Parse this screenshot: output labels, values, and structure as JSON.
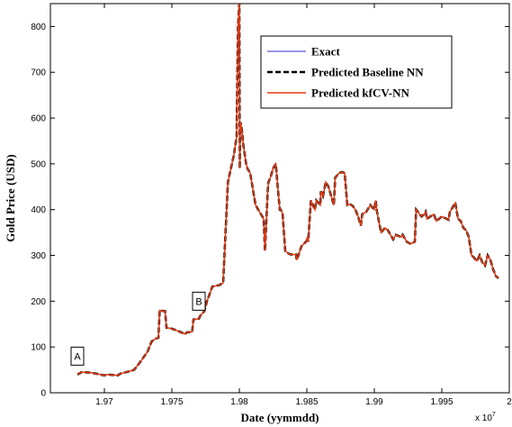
{
  "chart_data": {
    "type": "line",
    "xlabel": "Date (yymmdd)",
    "ylabel": "Gold Price (USD)",
    "x_scale_label": "x 10",
    "x_scale_exponent": "7",
    "xlim": [
      19660000,
      20000000
    ],
    "ylim": [
      0,
      850
    ],
    "xticks": [
      19700000,
      19750000,
      19800000,
      19850000,
      19900000,
      19950000,
      20000000
    ],
    "xtick_labels": [
      "1.97",
      "1.975",
      "1.98",
      "1.985",
      "1.99",
      "1.995",
      "2"
    ],
    "yticks": [
      0,
      100,
      200,
      300,
      400,
      500,
      600,
      700,
      800
    ],
    "ytick_labels": [
      "0",
      "100",
      "200",
      "300",
      "400",
      "500",
      "600",
      "700",
      "800"
    ],
    "legend_position": "top-right",
    "annotations": [
      {
        "text": "A",
        "x": 19680000,
        "y": 80
      },
      {
        "text": "B",
        "x": 19770000,
        "y": 200
      }
    ],
    "series": [
      {
        "name": "Exact",
        "color": "#3333cc",
        "style": "solid",
        "x": [
          19680000,
          19681500,
          19683000,
          19690000,
          19700000,
          19702000,
          19710000,
          19712000,
          19720000,
          19722000,
          19726000,
          19732000,
          19735000,
          19738000,
          19740000,
          19741000,
          19745000,
          19746000,
          19750000,
          19752000,
          19760000,
          19761000,
          19765000,
          19766000,
          19770000,
          19771000,
          19774000,
          19776000,
          19780000,
          19785000,
          19788000,
          19791500,
          19793000,
          19796000,
          19798000,
          19798200,
          19799000,
          19800000,
          19800300,
          19800600,
          19800800,
          19801000,
          19802000,
          19803000,
          19803500,
          19805000,
          19806000,
          19808000,
          19812000,
          19814000,
          19818000,
          19819000,
          19821000,
          19821500,
          19823000,
          19825000,
          19827000,
          19829000,
          19830000,
          19830600,
          19831000,
          19832000,
          19834000,
          19836000,
          19838000,
          19842000,
          19842500,
          19846000,
          19850000,
          19850300,
          19851000,
          19853000,
          19856000,
          19857000,
          19860000,
          19860400,
          19862000,
          19864000,
          19866000,
          19870000,
          19871000,
          19874000,
          19876000,
          19878000,
          19880000,
          19882000,
          19884000,
          19886000,
          19888000,
          19890000,
          19891000,
          19894000,
          19897000,
          19900000,
          19901000,
          19902000,
          19905000,
          19908000,
          19910000,
          19914000,
          19916000,
          19920000,
          19921000,
          19924000,
          19927000,
          19930000,
          19931000,
          19935000,
          19937000,
          19938000,
          19939000,
          19944000,
          19946000,
          19950000,
          19952000,
          19955000,
          19956000,
          19958000,
          19960000,
          19962000,
          19964000,
          19966000,
          19968000,
          19970000,
          19972000,
          19974000,
          19975000,
          19976000,
          19978000,
          19980000,
          19982000,
          19984000,
          19986000,
          19988000,
          19990000,
          19992000
        ],
        "y": [
          40,
          42,
          45,
          44,
          38,
          40,
          38,
          42,
          48,
          50,
          65,
          90,
          112,
          118,
          120,
          180,
          178,
          142,
          140,
          138,
          128,
          132,
          133,
          160,
          162,
          168,
          178,
          200,
          232,
          235,
          240,
          460,
          480,
          520,
          560,
          620,
          800,
          850,
          490,
          560,
          580,
          590,
          570,
          540,
          530,
          500,
          490,
          480,
          410,
          400,
          380,
          310,
          440,
          460,
          470,
          490,
          500,
          430,
          400,
          400,
          398,
          392,
          310,
          305,
          302,
          302,
          290,
          320,
          332,
          340,
          330,
          420,
          400,
          420,
          410,
          440,
          430,
          460,
          450,
          410,
          470,
          480,
          482,
          480,
          410,
          412,
          408,
          400,
          385,
          365,
          390,
          395,
          410,
          400,
          420,
          395,
          350,
          360,
          355,
          335,
          345,
          340,
          345,
          330,
          325,
          330,
          400,
          385,
          390,
          395,
          380,
          390,
          375,
          385,
          382,
          378,
          395,
          405,
          415,
          380,
          375,
          360,
          355,
          340,
          300,
          295,
          290,
          288,
          300,
          285,
          278,
          300,
          290,
          270,
          255,
          250
        ]
      },
      {
        "name": "Predicted Baseline NN",
        "color": "#000000",
        "style": "dashed"
      },
      {
        "name": "Predicted kfCV-NN",
        "color": "#e83a10",
        "style": "solid"
      }
    ]
  }
}
